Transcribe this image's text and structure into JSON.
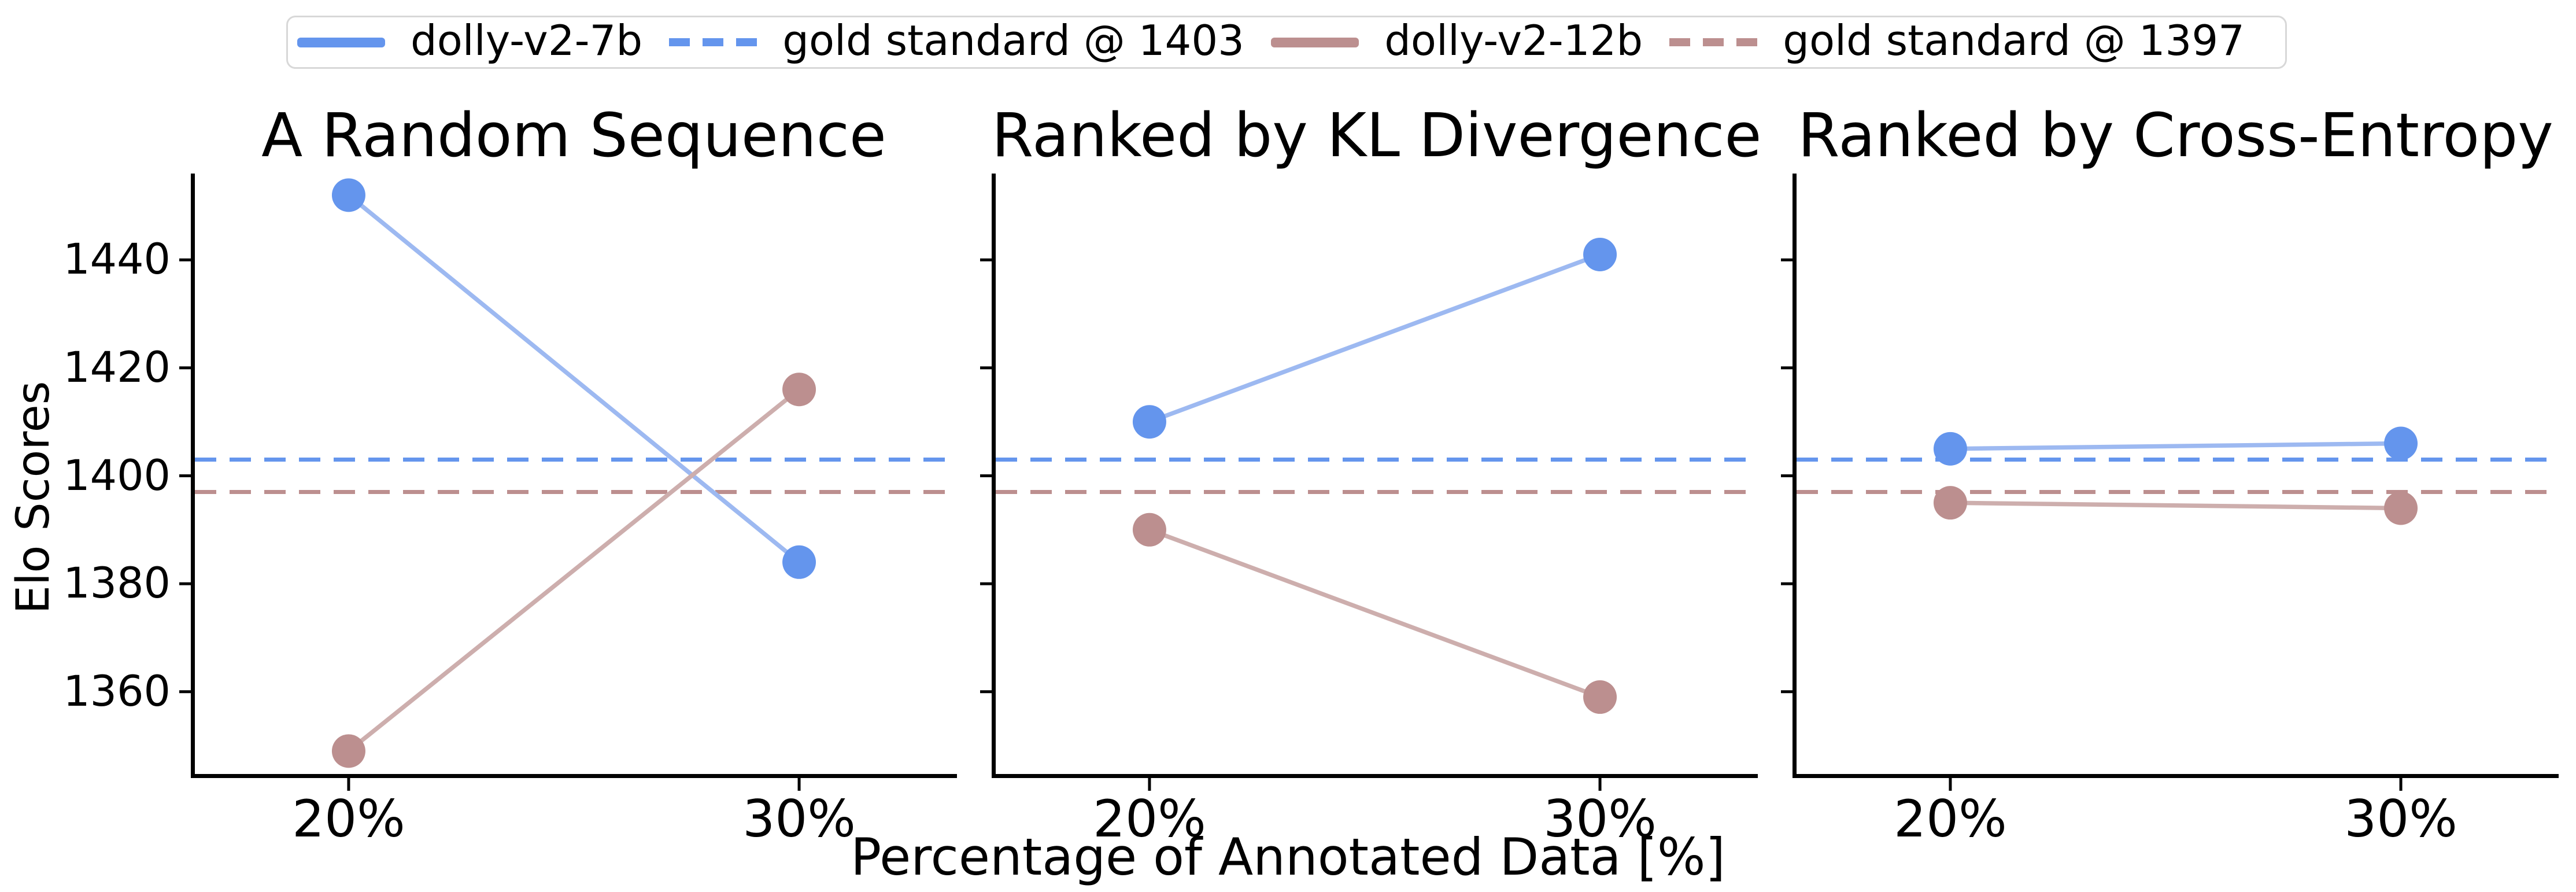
{
  "legend": {
    "items": [
      {
        "label": "dolly-v2-7b",
        "style": "solid",
        "color": "#6495ED"
      },
      {
        "label": "gold standard @ 1403",
        "style": "dashed",
        "color": "#6495ED"
      },
      {
        "label": "dolly-v2-12b",
        "style": "solid",
        "color": "#BC8F8F"
      },
      {
        "label": "gold standard @ 1397",
        "style": "dashed",
        "color": "#BC8F8F"
      }
    ]
  },
  "chart_data": {
    "type": "line",
    "title": "",
    "xlabel": "Percentage of Annotated Data [%]",
    "ylabel": "Elo Scores",
    "categories": [
      "20%",
      "30%"
    ],
    "yticks": [
      1440,
      1420,
      1400,
      1380,
      1360
    ],
    "ylim": [
      1344,
      1456
    ],
    "grid": false,
    "legend_position": "top-center",
    "subplots": [
      {
        "title": "A Random Sequence",
        "series": [
          {
            "name": "dolly-v2-7b",
            "color": "#6495ED",
            "line_color": "#9DB9F1",
            "values": [
              1452,
              1384
            ]
          },
          {
            "name": "dolly-v2-12b",
            "color": "#BC8F8F",
            "line_color": "#CDAEAD",
            "values": [
              1349,
              1416
            ]
          }
        ]
      },
      {
        "title": "Ranked by KL Divergence",
        "series": [
          {
            "name": "dolly-v2-7b",
            "color": "#6495ED",
            "line_color": "#9DB9F1",
            "values": [
              1410,
              1441
            ]
          },
          {
            "name": "dolly-v2-12b",
            "color": "#BC8F8F",
            "line_color": "#CDAEAD",
            "values": [
              1390,
              1359
            ]
          }
        ]
      },
      {
        "title": "Ranked by Cross-Entropy",
        "series": [
          {
            "name": "dolly-v2-7b",
            "color": "#6495ED",
            "line_color": "#9DB9F1",
            "values": [
              1405,
              1406
            ]
          },
          {
            "name": "dolly-v2-12b",
            "color": "#BC8F8F",
            "line_color": "#CDAEAD",
            "values": [
              1395,
              1394
            ]
          }
        ]
      }
    ],
    "gold_standards": [
      {
        "label": "gold standard @ 1403",
        "value": 1403,
        "color": "#6495ED"
      },
      {
        "label": "gold standard @ 1397",
        "value": 1397,
        "color": "#BC8F8F"
      }
    ]
  }
}
